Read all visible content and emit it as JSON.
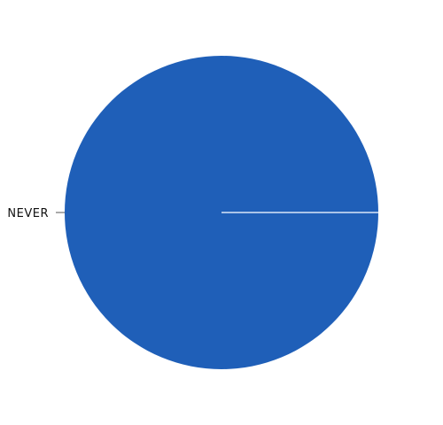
{
  "chart_data": {
    "type": "pie",
    "title": "",
    "slices": [
      {
        "label": "NEVER",
        "value": 100,
        "color": "#1f5fb8"
      }
    ],
    "legend": "none",
    "label_placement": "outside-left",
    "edge_color": "#d9e6f7"
  }
}
